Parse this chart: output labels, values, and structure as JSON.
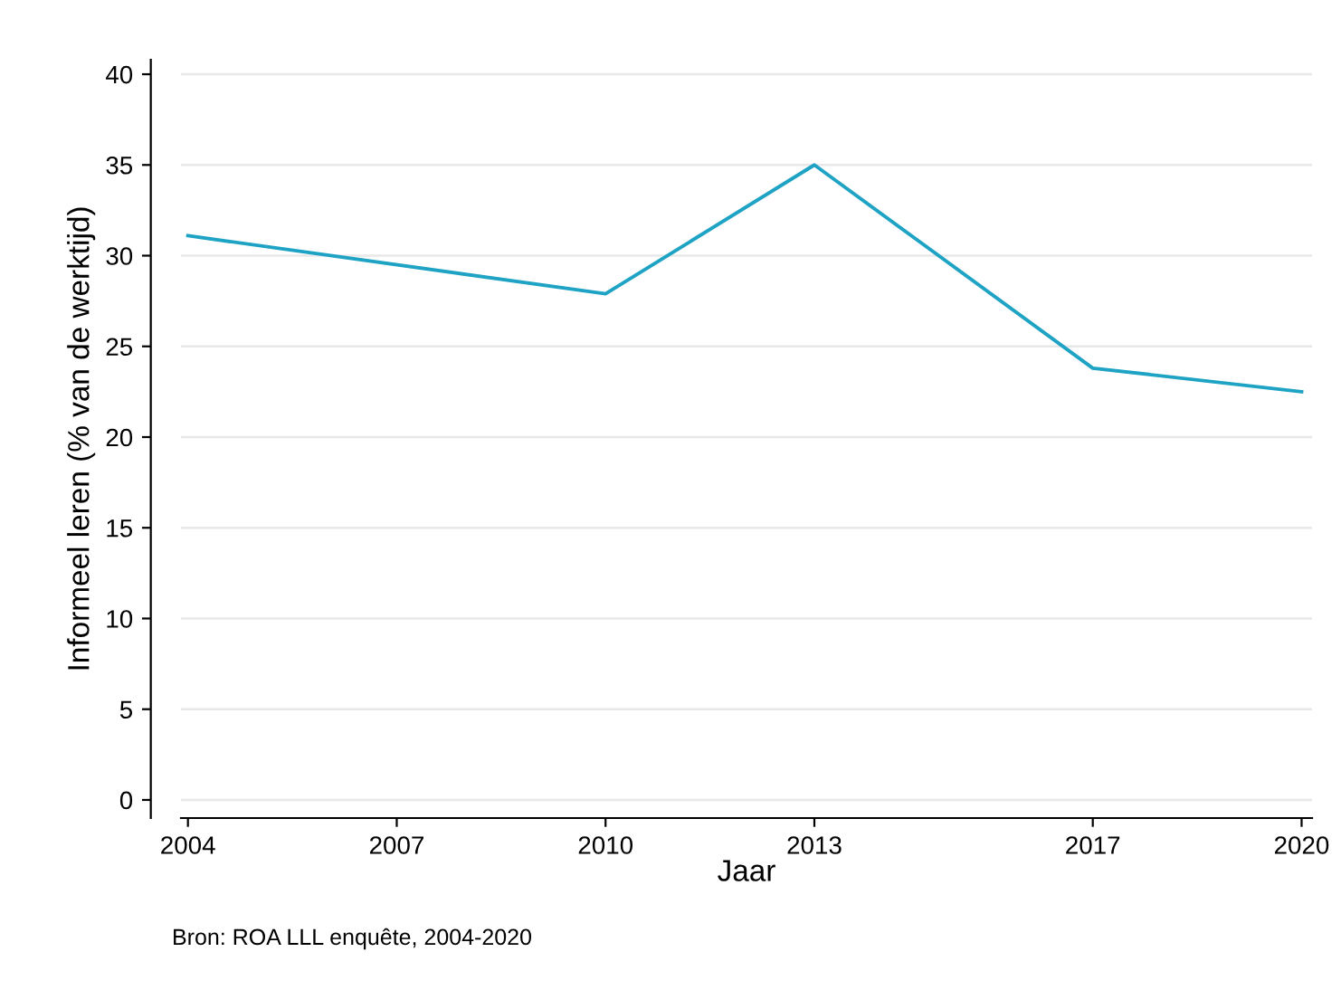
{
  "chart_data": {
    "type": "line",
    "xlabel": "Jaar",
    "ylabel": "Informeel leren (% van de werktijd)",
    "x": [
      2004,
      2010,
      2013,
      2017,
      2020
    ],
    "series": [
      {
        "color": "#1fa3c4",
        "values": [
          31.1,
          27.9,
          35.0,
          23.8,
          22.5
        ]
      }
    ],
    "xlim": [
      2003.9,
      2020.15
    ],
    "xticks": [
      2004,
      2007,
      2010,
      2013,
      2017,
      2020
    ],
    "ylim": [
      -1,
      40.8
    ],
    "yticks": [
      0,
      5,
      10,
      15,
      20,
      25,
      30,
      35,
      40
    ],
    "grid": "y",
    "marker": "none",
    "line_style": "solid",
    "annotations": [
      "Bron: ROA LLL enquête, 2004-2020"
    ]
  }
}
